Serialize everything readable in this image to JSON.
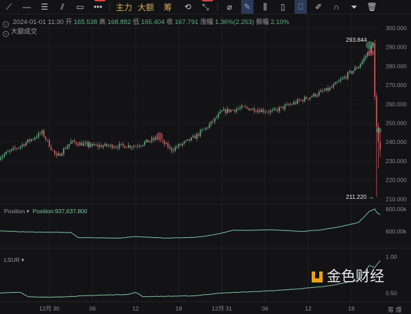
{
  "toolbar": {
    "items": [
      {
        "icon": "trend-line-icon",
        "glyph": "⟋"
      },
      {
        "icon": "horizontal-line-icon",
        "glyph": "—"
      },
      {
        "icon": "parallel-lines-icon",
        "glyph": "☰"
      },
      {
        "icon": "parallel-channel-icon",
        "glyph": "⫽"
      },
      {
        "icon": "rectangle-icon",
        "glyph": "▭"
      },
      {
        "icon": "more-icon",
        "glyph": "•••",
        "badge": "NEW"
      }
    ],
    "text_buttons": [
      "主力",
      "大额",
      "筹"
    ],
    "tools": [
      {
        "icon": "refresh-icon",
        "glyph": "⟲"
      },
      {
        "icon": "measure-line-icon",
        "glyph": "⤡",
        "badge": "NEW"
      },
      {
        "icon": "ruler-icon",
        "glyph": "⌀"
      },
      {
        "icon": "pen-icon",
        "glyph": "✎",
        "selected": true
      },
      {
        "icon": "candles-icon",
        "glyph": "⫼"
      },
      {
        "icon": "clipboard-icon",
        "glyph": "▯"
      },
      {
        "icon": "bookmark-icon",
        "glyph": "⎕",
        "selected": true
      },
      {
        "icon": "note-icon",
        "glyph": "✐"
      },
      {
        "icon": "magnet-icon",
        "glyph": "∩"
      },
      {
        "icon": "filter-icon",
        "glyph": "⏷"
      },
      {
        "icon": "trash-icon",
        "glyph": "🗑"
      }
    ]
  },
  "ohlc": {
    "datetime": "2024-01-01 11:30",
    "open_label": "开",
    "open": "165.538",
    "high_label": "高",
    "high": "168.882",
    "low_label": "低",
    "low": "165.404",
    "close_label": "收",
    "close": "167.791",
    "change_label": "涨幅",
    "change": "1.36%(2.253)",
    "amplitude_label": "振幅",
    "amplitude": "2.10%"
  },
  "overlay_label": "大额成交",
  "colors": {
    "up": "#5fa37c",
    "down": "#c9565c",
    "line": "#7fc4a3",
    "bg": "#131316",
    "gold": "#d8a95a"
  },
  "chart_data": [
    {
      "type": "candlestick",
      "y_ticks": [
        "300.000",
        "290.000",
        "280.000",
        "270.000",
        "260.000",
        "250.000",
        "240.000",
        "230.000",
        "220.000",
        "210.000"
      ],
      "ylim": [
        206,
        302
      ],
      "annotations": {
        "high": "293.844",
        "low": "211.220 →"
      },
      "price_path": [
        [
          "12-29 17:00",
          232
        ],
        [
          "12-29 20:00",
          238
        ],
        [
          "12-29 23:00",
          245
        ],
        [
          "12-30 01:00",
          232
        ],
        [
          "12-30 03:00",
          240
        ],
        [
          "12-30 06:00",
          238
        ],
        [
          "12-30 12:00",
          238
        ],
        [
          "12-30 15:00",
          242
        ],
        [
          "12-30 17:00",
          236
        ],
        [
          "12-30 20:00",
          242
        ],
        [
          "12-30 22:00",
          248
        ],
        [
          "12-31 00:00",
          256
        ],
        [
          "12-31 03:00",
          258
        ],
        [
          "12-31 07:00",
          256
        ],
        [
          "12-31 11:00",
          262
        ],
        [
          "12-31 15:00",
          268
        ],
        [
          "12-31 19:00",
          280
        ],
        [
          "12-31 20:30",
          288
        ],
        [
          "12-31 21:00",
          292
        ]
      ],
      "final_candles": [
        {
          "o": 292,
          "h": 293.844,
          "l": 262,
          "c": 264
        },
        {
          "o": 264,
          "h": 266,
          "l": 211.22,
          "c": 248
        },
        {
          "o": 248,
          "h": 250,
          "l": 226,
          "c": 240
        },
        {
          "o": 240,
          "h": 246,
          "l": 232,
          "c": 236
        }
      ],
      "x_ticks": [
        [
          "12-30 00:00",
          "12月 30"
        ],
        [
          "12-30 06:00",
          "06"
        ],
        [
          "12-30 12:00",
          "12"
        ],
        [
          "12-30 18:00",
          "18"
        ],
        [
          "12-31 00:00",
          "12月 31"
        ],
        [
          "12-31 06:00",
          "06"
        ],
        [
          "12-31 12:00",
          "12"
        ],
        [
          "12-31 18:00",
          "18"
        ]
      ]
    },
    {
      "type": "line",
      "name": "Position",
      "value_label": "Position:937,637.800",
      "y_ticks": [
        "800.00k",
        "600.00k"
      ],
      "ylim": [
        450,
        830
      ],
      "values": [
        [
          "12-29 17:00",
          605
        ],
        [
          "12-29 21:00",
          595
        ],
        [
          "12-30 03:00",
          590
        ],
        [
          "12-30 04:00",
          545
        ],
        [
          "12-30 10:00",
          540
        ],
        [
          "12-30 12:00",
          555
        ],
        [
          "12-30 16:00",
          540
        ],
        [
          "12-30 20:00",
          545
        ],
        [
          "12-30 22:00",
          560
        ],
        [
          "12-31 00:00",
          585
        ],
        [
          "12-31 01:30",
          610
        ],
        [
          "12-31 03:30",
          610
        ],
        [
          "12-31 07:00",
          615
        ],
        [
          "12-31 11:00",
          600
        ],
        [
          "12-31 14:00",
          615
        ],
        [
          "12-31 17:00",
          650
        ],
        [
          "12-31 19:00",
          680
        ],
        [
          "12-31 20:30",
          780
        ],
        [
          "12-31 21:15",
          800
        ],
        [
          "12-31 21:30",
          770
        ],
        [
          "12-31 22:00",
          750
        ]
      ]
    },
    {
      "type": "line",
      "name": "LSUR",
      "y_ticks": [
        "1.00",
        "0.50"
      ],
      "ylim": [
        0.38,
        1.1
      ],
      "values": [
        [
          "12-29 17:00",
          0.5
        ],
        [
          "12-29 20:00",
          0.51
        ],
        [
          "12-29 21:00",
          0.45
        ],
        [
          "12-30 00:00",
          0.44
        ],
        [
          "12-30 07:00",
          0.47
        ],
        [
          "12-30 11:00",
          0.48
        ],
        [
          "12-30 12:00",
          0.51
        ],
        [
          "12-30 13:00",
          0.45
        ],
        [
          "12-30 20:00",
          0.46
        ],
        [
          "12-31 00:00",
          0.5
        ],
        [
          "12-31 07:00",
          0.53
        ],
        [
          "12-31 11:00",
          0.56
        ],
        [
          "12-31 15:00",
          0.6
        ],
        [
          "12-31 19:00",
          0.68
        ],
        [
          "12-31 20:30",
          0.88
        ],
        [
          "12-31 21:15",
          0.85
        ],
        [
          "12-31 22:00",
          0.95
        ]
      ]
    }
  ],
  "footer_right": "筹 爆",
  "watermark": "金色财经"
}
